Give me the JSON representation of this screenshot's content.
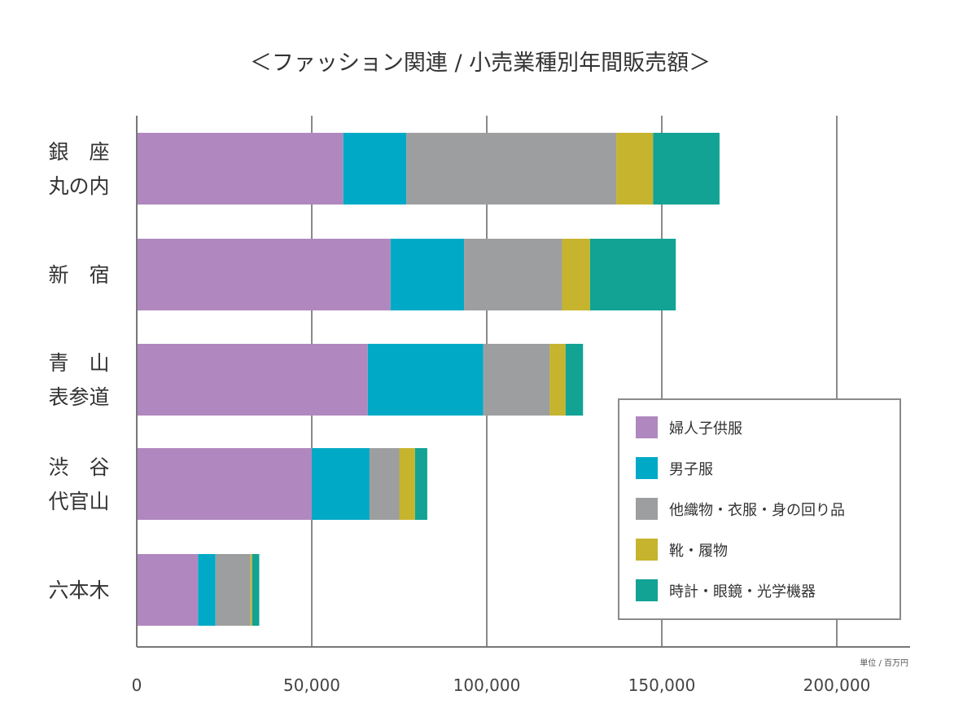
{
  "chart_data": {
    "type": "bar",
    "orientation": "horizontal",
    "stacked": true,
    "title": "＜ファッション関連 / 小売業種別年間販売額＞",
    "unit_label": "単位 / 百万円",
    "categories": [
      [
        "銀　座",
        "丸の内"
      ],
      [
        "新　宿"
      ],
      [
        "青　山",
        "表参道"
      ],
      [
        "渋　谷",
        "代官山"
      ],
      [
        "六本木"
      ]
    ],
    "series": [
      {
        "name": "婦人子供服",
        "color": "#b088bf",
        "values": [
          59000,
          72500,
          66000,
          50000,
          17500
        ]
      },
      {
        "name": "男子服",
        "color": "#00aac6",
        "values": [
          18000,
          21000,
          33000,
          16500,
          5000
        ]
      },
      {
        "name": "他織物・衣服・身の回り品",
        "color": "#9d9ea0",
        "values": [
          60000,
          28000,
          19000,
          8500,
          10000
        ]
      },
      {
        "name": "靴・履物",
        "color": "#c6b42e",
        "values": [
          10500,
          8000,
          4500,
          4500,
          500
        ]
      },
      {
        "name": "時計・眼鏡・光学機器",
        "color": "#12a394",
        "values": [
          19000,
          24500,
          5000,
          3500,
          2000
        ]
      }
    ],
    "xlim": [
      0,
      220000
    ],
    "xticks": [
      0,
      50000,
      100000,
      150000,
      200000
    ],
    "xtick_labels": [
      "0",
      "50,000",
      "100,000",
      "150,000",
      "200,000"
    ],
    "grid": true,
    "legend_position": "bottom-right"
  }
}
